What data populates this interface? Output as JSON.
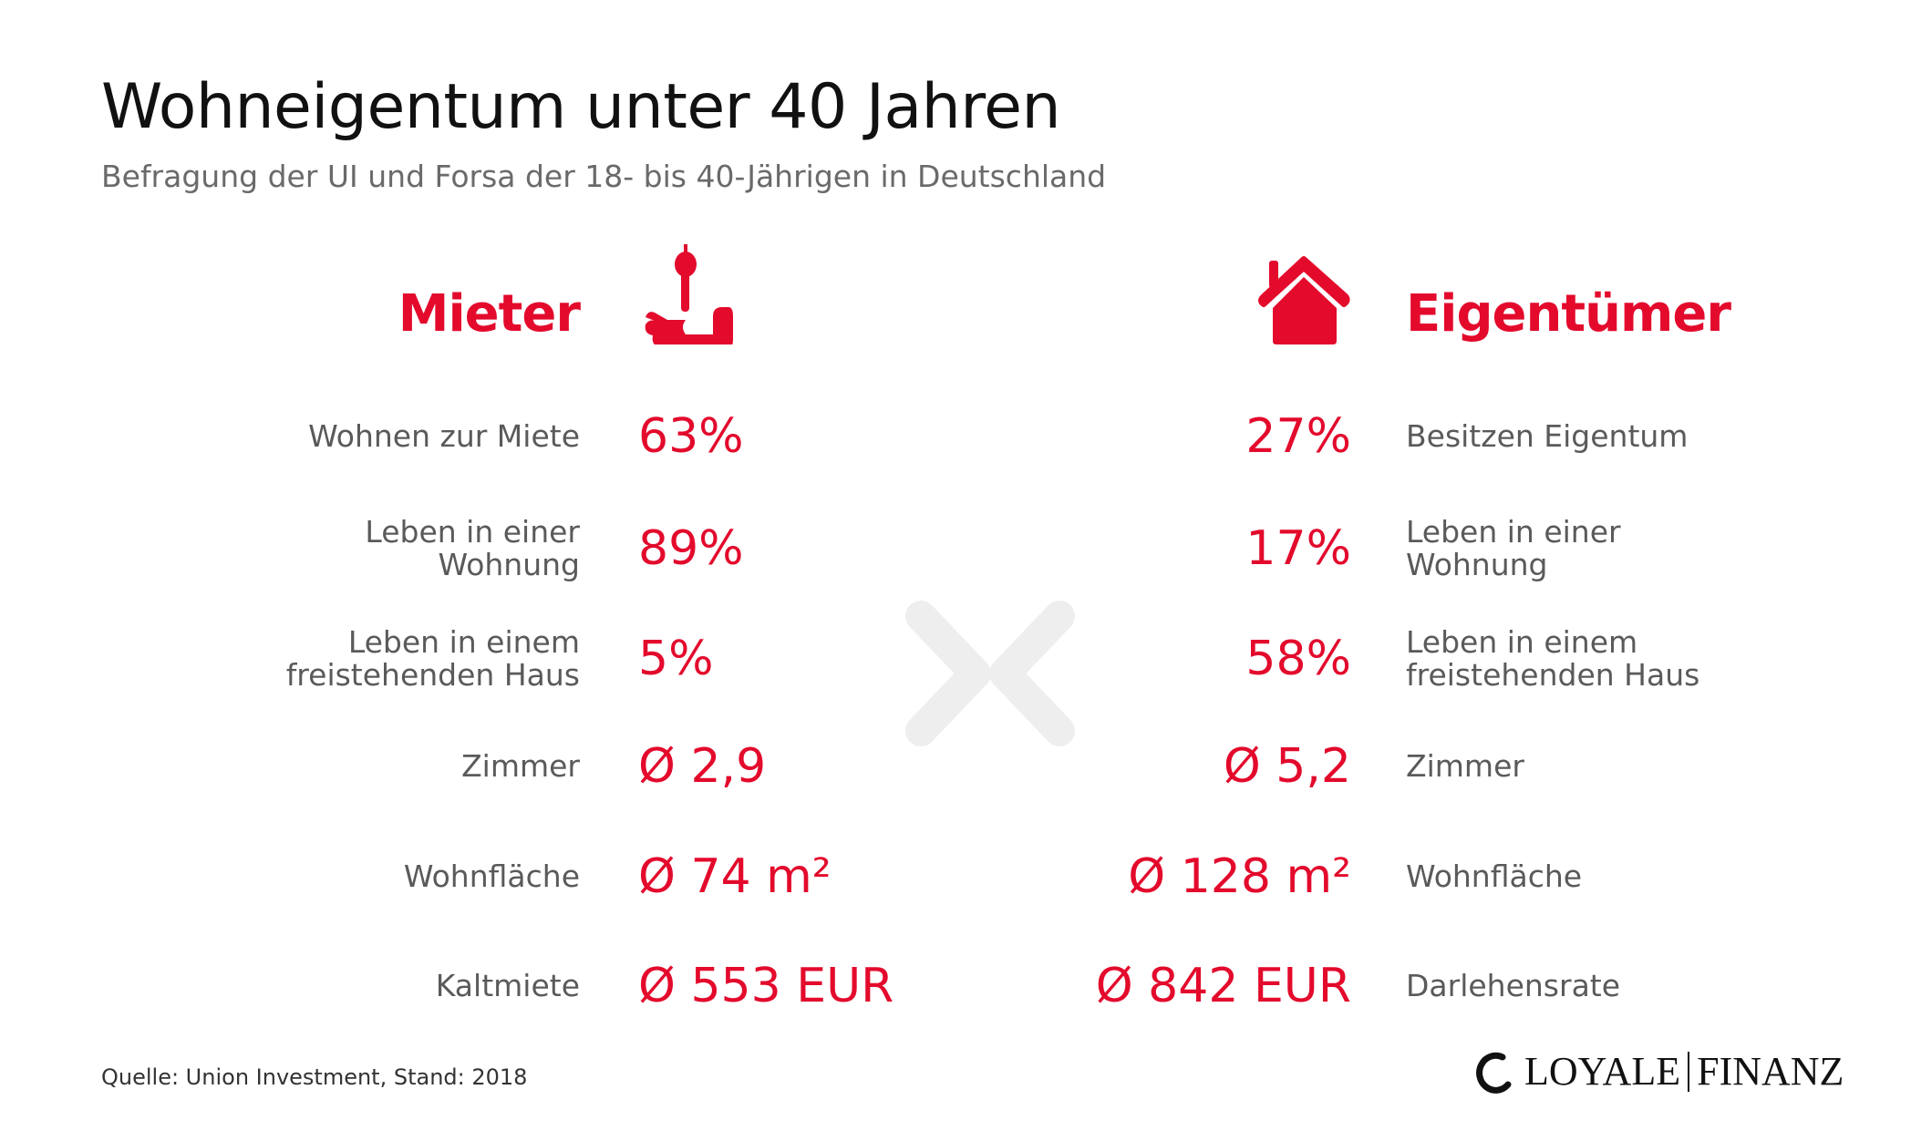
{
  "title": "Wohneigentum unter 40 Jahren",
  "subtitle": "Befragung der UI und Forsa der 18- bis 40-Jährigen in Deutschland",
  "colors": {
    "accent": "#e30a2c",
    "label": "#5a5a5a",
    "decoration": "#eeeeee"
  },
  "left": {
    "heading": "Mieter",
    "icon": "hand-with-key-icon",
    "rows": [
      {
        "label": "Wohnen zur Miete",
        "value": "63%"
      },
      {
        "label": "Leben in einer Wohnung",
        "value": "89%"
      },
      {
        "label": "Leben in einem freistehenden Haus",
        "value": "5%"
      },
      {
        "label": "Zimmer",
        "value": "Ø 2,9"
      },
      {
        "label": "Wohnfläche",
        "value": "Ø 74 m²"
      },
      {
        "label": "Kaltmiete",
        "value": "Ø 553 EUR"
      }
    ]
  },
  "right": {
    "heading": "Eigentümer",
    "icon": "house-icon",
    "rows": [
      {
        "label": "Besitzen Eigentum",
        "value": "27%"
      },
      {
        "label": "Leben in einer Wohnung",
        "value": "17%"
      },
      {
        "label": "Leben in einem freistehenden Haus",
        "value": "58%"
      },
      {
        "label": "Zimmer",
        "value": "Ø 5,2"
      },
      {
        "label": "Wohnfläche",
        "value": "Ø 128 m²"
      },
      {
        "label": "Darlehensrate",
        "value": "Ø 842 EUR"
      }
    ]
  },
  "source": "Quelle: Union Investment, Stand: 2018",
  "logo": {
    "text_left": "LOYALE",
    "text_right": "FINANZ"
  }
}
